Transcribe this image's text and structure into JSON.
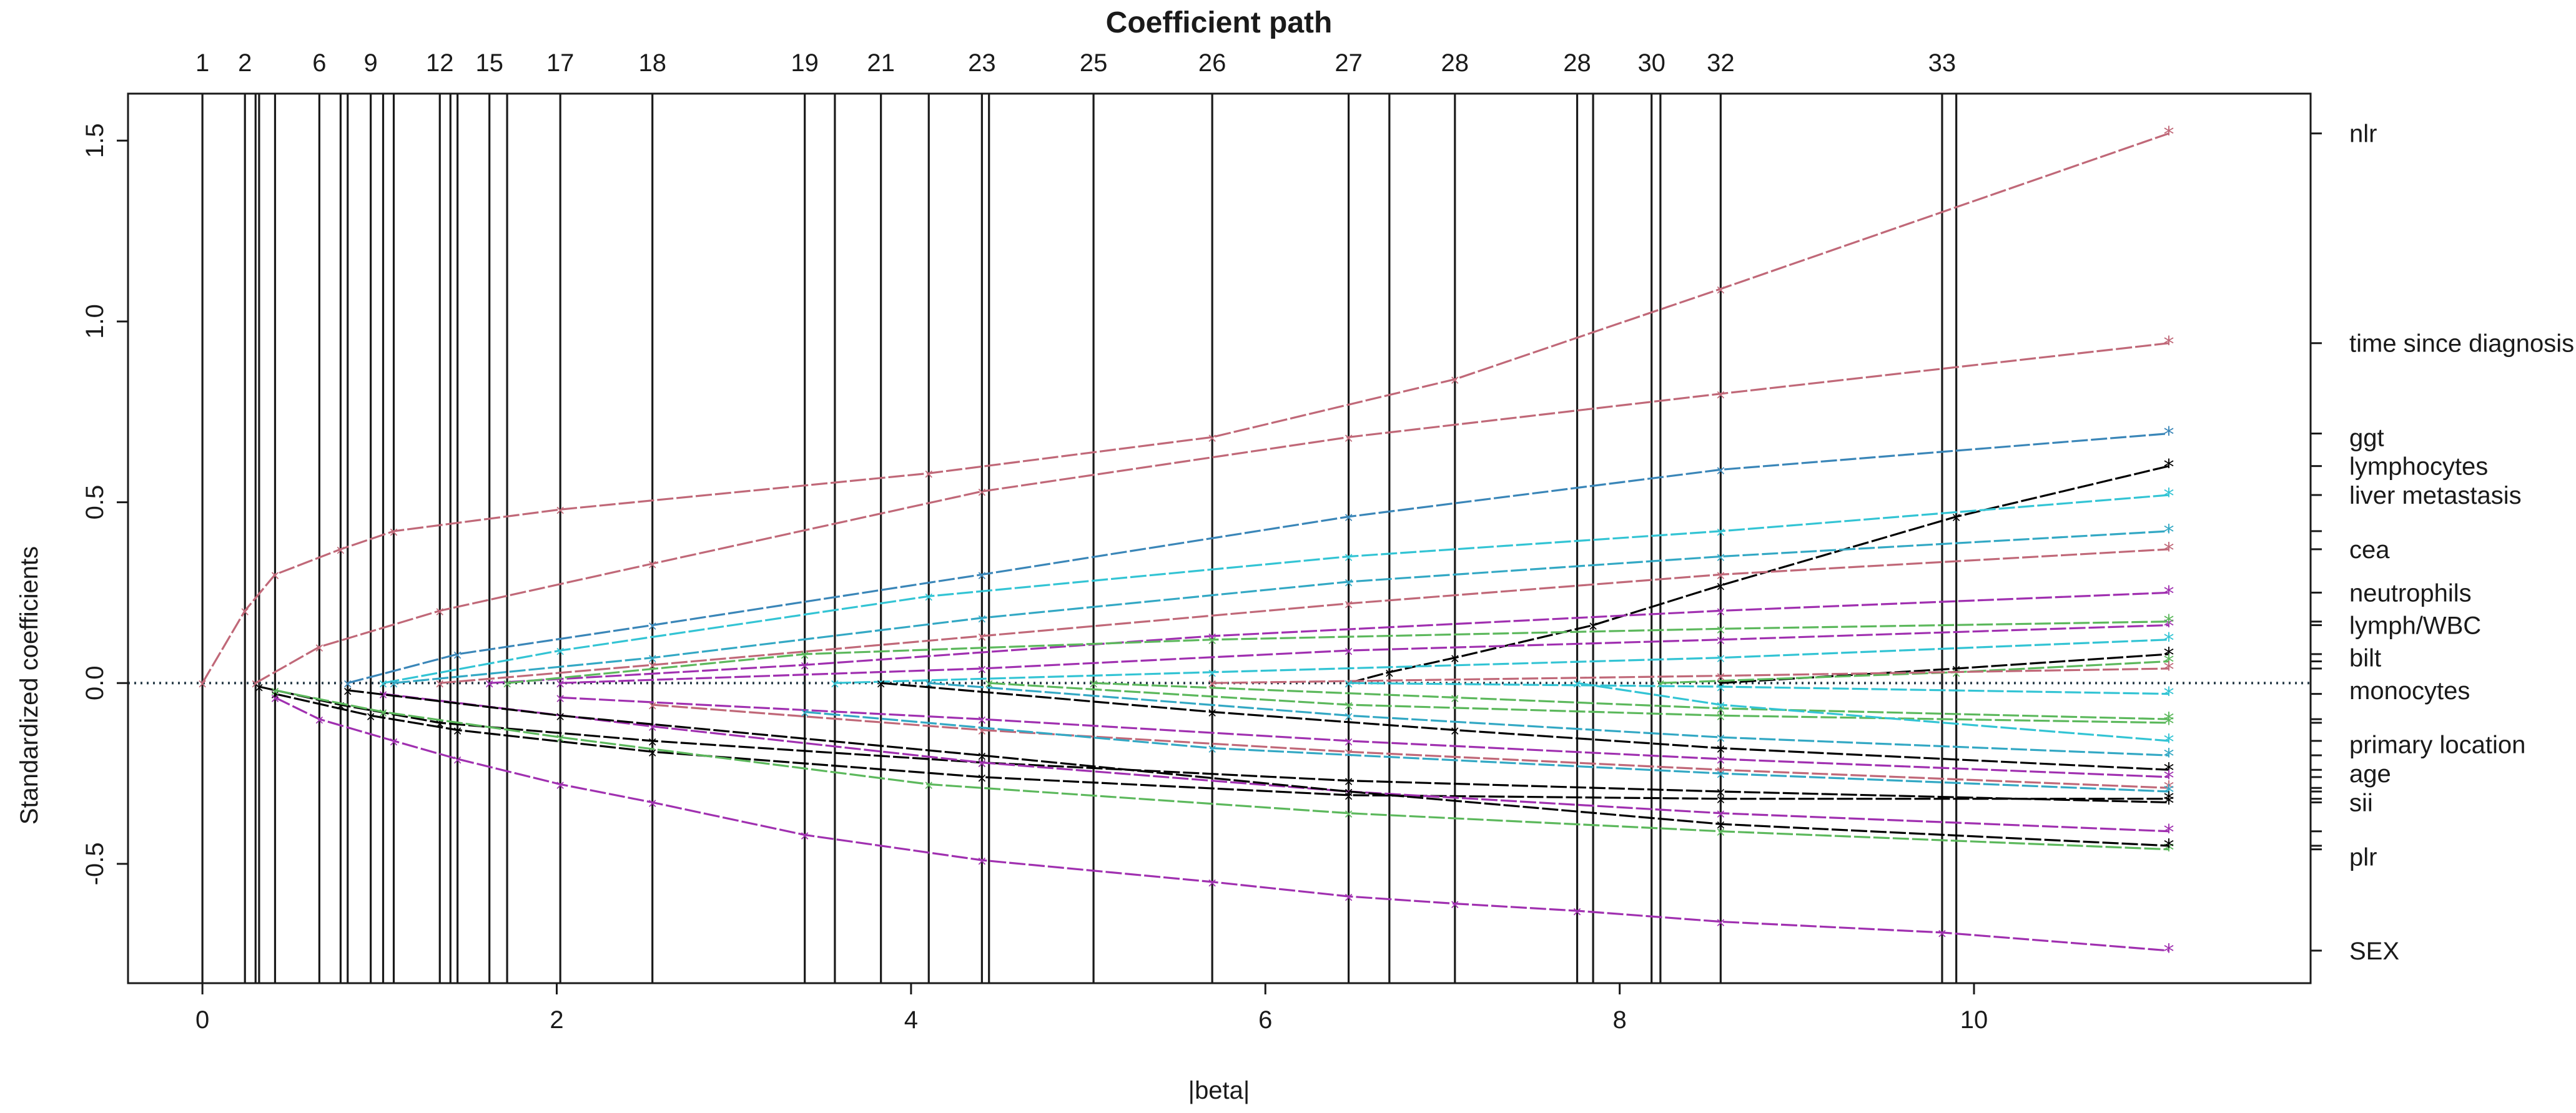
{
  "chart_data": {
    "type": "line",
    "title": "Coefficient path",
    "xlabel": "|beta|",
    "ylabel": "Standardized coefficients",
    "xlim": [
      -0.42,
      11.9
    ],
    "ylim": [
      -0.83,
      1.63
    ],
    "x_ticks": [
      "0",
      "2",
      "4",
      "6",
      "8",
      "10"
    ],
    "y_ticks": [
      "-0.5",
      "0.0",
      "0.5",
      "1.0",
      "1.5"
    ],
    "step_lines": [
      0,
      0.24,
      0.3,
      0.32,
      0.41,
      0.66,
      0.78,
      0.82,
      0.95,
      1.02,
      1.08,
      1.34,
      1.4,
      1.44,
      1.62,
      1.72,
      2.02,
      2.54,
      3.4,
      3.57,
      3.83,
      4.1,
      4.4,
      4.44,
      5.03,
      5.7,
      6.47,
      6.7,
      7.07,
      7.76,
      7.85,
      8.18,
      8.23,
      8.57,
      9.82,
      9.9
    ],
    "step_annotations": [
      {
        "x": 0,
        "label": "1"
      },
      {
        "x": 0.24,
        "label": "2"
      },
      {
        "x": 0.66,
        "label": "6"
      },
      {
        "x": 0.95,
        "label": "9"
      },
      {
        "x": 1.34,
        "label": "12"
      },
      {
        "x": 1.62,
        "label": "15"
      },
      {
        "x": 2.02,
        "label": "17"
      },
      {
        "x": 2.54,
        "label": "18"
      },
      {
        "x": 3.4,
        "label": "19"
      },
      {
        "x": 3.83,
        "label": "21"
      },
      {
        "x": 4.4,
        "label": "23"
      },
      {
        "x": 5.03,
        "label": "25"
      },
      {
        "x": 5.7,
        "label": "26"
      },
      {
        "x": 6.47,
        "label": "27"
      },
      {
        "x": 7.07,
        "label": "28"
      },
      {
        "x": 7.76,
        "label": "28"
      },
      {
        "x": 8.18,
        "label": "30"
      },
      {
        "x": 8.57,
        "label": "32"
      },
      {
        "x": 9.82,
        "label": "33"
      }
    ],
    "series": [
      {
        "name": "nlr",
        "color": "#c06878",
        "x": [
          0,
          0.24,
          0.41,
          0.78,
          1.08,
          2.02,
          4.1,
          5.7,
          7.07,
          8.57,
          11.1
        ],
        "values": [
          0,
          0.2,
          0.3,
          0.37,
          0.42,
          0.48,
          0.58,
          0.68,
          0.84,
          1.09,
          1.52
        ]
      },
      {
        "name": "time since diagnosis",
        "color": "#c06878",
        "x": [
          0.3,
          0.66,
          1.34,
          2.54,
          4.4,
          6.47,
          8.57,
          11.1
        ],
        "values": [
          0,
          0.1,
          0.2,
          0.33,
          0.53,
          0.68,
          0.8,
          0.94
        ]
      },
      {
        "name": "ggt",
        "color": "#3a86b8",
        "x": [
          0.82,
          1.44,
          2.54,
          4.4,
          6.47,
          8.57,
          11.1
        ],
        "values": [
          0,
          0.08,
          0.16,
          0.3,
          0.46,
          0.59,
          0.69
        ]
      },
      {
        "name": "lymphocytes",
        "color": "#000000",
        "x": [
          6.47,
          6.7,
          7.07,
          7.85,
          8.57,
          9.9,
          11.1
        ],
        "values": [
          0,
          0.03,
          0.07,
          0.16,
          0.27,
          0.46,
          0.6
        ]
      },
      {
        "name": "liver metastasis",
        "color": "#33c4d4",
        "x": [
          1.02,
          2.02,
          4.1,
          6.47,
          8.57,
          11.1
        ],
        "values": [
          0,
          0.09,
          0.24,
          0.35,
          0.42,
          0.52
        ]
      },
      {
        "name": "",
        "color": "#33a8c4",
        "x": [
          1.08,
          2.54,
          4.4,
          6.47,
          8.57,
          11.1
        ],
        "values": [
          0,
          0.07,
          0.18,
          0.28,
          0.35,
          0.42
        ]
      },
      {
        "name": "cea",
        "color": "#c06878",
        "x": [
          1.34,
          2.54,
          4.4,
          6.47,
          8.57,
          11.1
        ],
        "values": [
          0,
          0.05,
          0.13,
          0.22,
          0.3,
          0.37
        ]
      },
      {
        "name": "neutrophils",
        "color": "#a030b0",
        "x": [
          1.62,
          3.4,
          5.7,
          8.57,
          11.1
        ],
        "values": [
          0,
          0.05,
          0.13,
          0.2,
          0.25
        ]
      },
      {
        "name": "lymph/WBC",
        "color": "#a030b0",
        "x": [
          2.02,
          4.4,
          6.47,
          8.57,
          11.1
        ],
        "values": [
          0,
          0.04,
          0.09,
          0.12,
          0.16
        ]
      },
      {
        "name": "",
        "color": "#5cb85c",
        "x": [
          1.72,
          3.4,
          5.7,
          8.57,
          11.1
        ],
        "values": [
          0,
          0.08,
          0.12,
          0.15,
          0.17
        ]
      },
      {
        "name": "",
        "color": "#33c4d4",
        "x": [
          3.57,
          5.7,
          8.57,
          11.1
        ],
        "values": [
          0,
          0.03,
          0.07,
          0.12
        ]
      },
      {
        "name": "bilt",
        "color": "#000000",
        "x": [
          8.57,
          9.9,
          11.1
        ],
        "values": [
          0,
          0.04,
          0.08
        ]
      },
      {
        "name": "",
        "color": "#5cb85c",
        "x": [
          8.23,
          9.9,
          11.1
        ],
        "values": [
          0,
          0.03,
          0.06
        ]
      },
      {
        "name": "",
        "color": "#c06878",
        "x": [
          5.7,
          8.57,
          11.1
        ],
        "values": [
          0,
          0.02,
          0.04
        ]
      },
      {
        "name": "monocytes",
        "color": "#33c4d4",
        "x": [
          6.47,
          8.57,
          11.1
        ],
        "values": [
          0,
          -0.01,
          -0.03
        ]
      },
      {
        "name": "",
        "color": "#5cb85c",
        "x": [
          5.03,
          7.07,
          8.57,
          11.1
        ],
        "values": [
          0,
          -0.04,
          -0.07,
          -0.1
        ]
      },
      {
        "name": "",
        "color": "#5cb85c",
        "x": [
          4.44,
          6.47,
          8.57,
          11.1
        ],
        "values": [
          0,
          -0.06,
          -0.09,
          -0.11
        ]
      },
      {
        "name": "primary location",
        "color": "#33c4d4",
        "x": [
          7.76,
          8.57,
          11.1
        ],
        "values": [
          0,
          -0.06,
          -0.16
        ]
      },
      {
        "name": "",
        "color": "#33a8c4",
        "x": [
          4.1,
          6.47,
          8.57,
          11.1
        ],
        "values": [
          0,
          -0.09,
          -0.15,
          -0.2
        ]
      },
      {
        "name": "age",
        "color": "#000000",
        "x": [
          3.83,
          5.7,
          7.07,
          8.57,
          11.1
        ],
        "values": [
          0,
          -0.08,
          -0.13,
          -0.18,
          -0.24
        ]
      },
      {
        "name": "",
        "color": "#a030b0",
        "x": [
          2.02,
          4.4,
          6.47,
          8.57,
          11.1
        ],
        "values": [
          -0.04,
          -0.1,
          -0.16,
          -0.21,
          -0.26
        ]
      },
      {
        "name": "",
        "color": "#c06878",
        "x": [
          2.54,
          4.4,
          6.47,
          8.57,
          11.1
        ],
        "values": [
          -0.06,
          -0.13,
          -0.19,
          -0.24,
          -0.29
        ]
      },
      {
        "name": "",
        "color": "#33a8c4",
        "x": [
          3.4,
          5.7,
          8.57,
          11.1
        ],
        "values": [
          -0.08,
          -0.18,
          -0.25,
          -0.3
        ]
      },
      {
        "name": "sii",
        "color": "#000000",
        "x": [
          0.41,
          0.95,
          1.44,
          2.54,
          4.4,
          6.47,
          8.57,
          11.1
        ],
        "values": [
          -0.03,
          -0.09,
          -0.13,
          -0.19,
          -0.26,
          -0.31,
          -0.32,
          -0.32
        ]
      },
      {
        "name": "",
        "color": "#000000",
        "x": [
          0.32,
          0.78,
          1.34,
          2.54,
          4.4,
          6.47,
          8.57,
          11.1
        ],
        "values": [
          -0.01,
          -0.06,
          -0.11,
          -0.16,
          -0.22,
          -0.27,
          -0.3,
          -0.33
        ]
      },
      {
        "name": "",
        "color": "#a030b0",
        "x": [
          1.02,
          2.54,
          4.4,
          6.47,
          8.57,
          11.1
        ],
        "values": [
          -0.03,
          -0.12,
          -0.22,
          -0.3,
          -0.36,
          -0.41
        ]
      },
      {
        "name": "",
        "color": "#5cb85c",
        "x": [
          0.41,
          1.02,
          2.02,
          4.1,
          6.47,
          8.57,
          11.1
        ],
        "values": [
          -0.02,
          -0.08,
          -0.15,
          -0.28,
          -0.36,
          -0.41,
          -0.46
        ]
      },
      {
        "name": "plr",
        "color": "#000000",
        "x": [
          0.82,
          2.02,
          4.4,
          6.47,
          8.57,
          11.1
        ],
        "values": [
          -0.02,
          -0.09,
          -0.2,
          -0.3,
          -0.39,
          -0.45
        ]
      },
      {
        "name": "SEX",
        "color": "#a030b0",
        "x": [
          0.41,
          0.66,
          1.08,
          1.44,
          2.02,
          2.54,
          3.4,
          4.4,
          5.7,
          6.47,
          7.07,
          7.76,
          8.57,
          9.82,
          11.1
        ],
        "values": [
          -0.04,
          -0.1,
          -0.16,
          -0.21,
          -0.28,
          -0.33,
          -0.42,
          -0.49,
          -0.55,
          -0.59,
          -0.61,
          -0.63,
          -0.66,
          -0.69,
          -0.74
        ]
      }
    ],
    "right_labels": [
      {
        "label": "nlr",
        "y": 1.52
      },
      {
        "label": "time since diagnosis",
        "y": 0.94
      },
      {
        "label": "ggt",
        "y": 0.68
      },
      {
        "label": "lymphocytes",
        "y": 0.6
      },
      {
        "label": "liver metastasis",
        "y": 0.52
      },
      {
        "label": "cea",
        "y": 0.37
      },
      {
        "label": "neutrophils",
        "y": 0.25
      },
      {
        "label": "lymph/WBC",
        "y": 0.16
      },
      {
        "label": "bilt",
        "y": 0.07
      },
      {
        "label": "monocytes",
        "y": -0.02
      },
      {
        "label": "primary location",
        "y": -0.17
      },
      {
        "label": "age",
        "y": -0.25
      },
      {
        "label": "sii",
        "y": -0.33
      },
      {
        "label": "plr",
        "y": -0.48
      },
      {
        "label": "SEX",
        "y": -0.74
      }
    ],
    "right_label_ticks": [
      1.52,
      0.94,
      0.69,
      0.6,
      0.52,
      0.42,
      0.37,
      0.25,
      0.17,
      0.16,
      0.08,
      0.06,
      0.04,
      -0.03,
      -0.1,
      -0.11,
      -0.16,
      -0.2,
      -0.24,
      -0.26,
      -0.29,
      -0.3,
      -0.32,
      -0.33,
      -0.41,
      -0.45,
      -0.46,
      -0.74
    ],
    "zero_line": true
  }
}
